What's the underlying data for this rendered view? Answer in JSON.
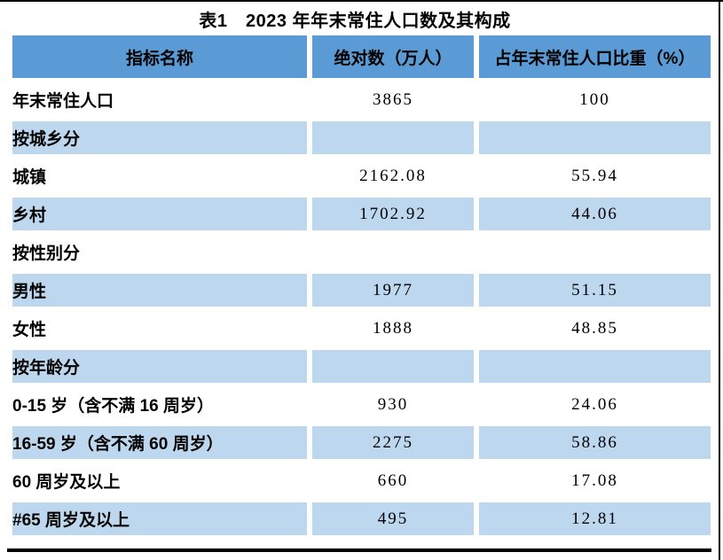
{
  "page": {
    "title": "表1　2023 年年末常住人口数及其构成"
  },
  "colors": {
    "header_bg": "#5B9BD5",
    "shaded_row_bg": "#BDD7EE",
    "rule": "#000000"
  },
  "table": {
    "headers": {
      "indicator": "指标名称",
      "absolute": "绝对数（万人）",
      "share": "占年末常住人口比重（%）"
    },
    "rows": [
      {
        "label": "年末常住人口",
        "absolute": "3865",
        "share": "100"
      },
      {
        "label": "按城乡分",
        "absolute": "",
        "share": ""
      },
      {
        "label": "城镇",
        "absolute": "2162.08",
        "share": "55.94"
      },
      {
        "label": "乡村",
        "absolute": "1702.92",
        "share": "44.06"
      },
      {
        "label": "按性别分",
        "absolute": "",
        "share": ""
      },
      {
        "label": "男性",
        "absolute": "1977",
        "share": "51.15"
      },
      {
        "label": "女性",
        "absolute": "1888",
        "share": "48.85"
      },
      {
        "label": "按年龄分",
        "absolute": "",
        "share": ""
      },
      {
        "label": "0-15 岁（含不满 16 周岁）",
        "absolute": "930",
        "share": "24.06"
      },
      {
        "label": "16-59 岁（含不满 60 周岁）",
        "absolute": "2275",
        "share": "58.86"
      },
      {
        "label": "60 周岁及以上",
        "absolute": "660",
        "share": "17.08"
      },
      {
        "label": "#65 周岁及以上",
        "absolute": "495",
        "share": "12.81"
      }
    ]
  }
}
